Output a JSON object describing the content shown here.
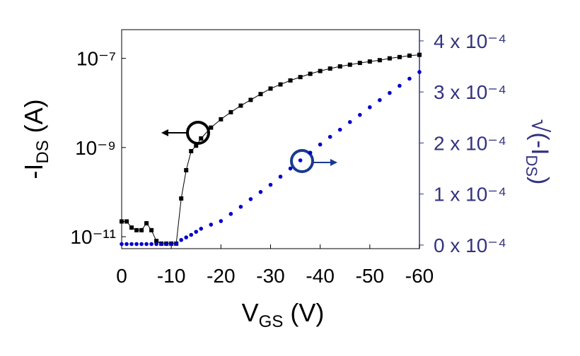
{
  "chart_data": {
    "type": "scatter",
    "x_label": {
      "main": "V",
      "sub": "GS",
      "unit": " (V)"
    },
    "y_label": {
      "main": "-I",
      "sub": "DS",
      "unit": " (A)"
    },
    "y2_label": {
      "main": "√",
      "paren": "(-I",
      "sub": "DS",
      "close": ")"
    },
    "x": [
      0,
      -1,
      -2,
      -3,
      -4,
      -5,
      -6,
      -7,
      -8,
      -9,
      -10,
      -11,
      -12,
      -13,
      -14,
      -15,
      -16,
      -18,
      -20,
      -22,
      -24,
      -26,
      -28,
      -30,
      -32,
      -34,
      -36,
      -38,
      -40,
      -42,
      -44,
      -46,
      -48,
      -50,
      -52,
      -54,
      -56,
      -58,
      -60
    ],
    "xlim": [
      0,
      -60
    ],
    "xticks": [
      0,
      -10,
      -20,
      -30,
      -40,
      -50,
      -60
    ],
    "ylim": [
      5.4e-12,
      4.4e-07
    ],
    "y_scale": "log",
    "yticks": [
      {
        "value": 1e-11,
        "label": "10⁻¹¹"
      },
      {
        "value": 1e-09,
        "label": "10⁻⁹"
      },
      {
        "value": 1e-07,
        "label": "10⁻⁷"
      }
    ],
    "y2lim": [
      -7e-06,
      0.000422
    ],
    "y2ticks": [
      {
        "value": 0,
        "label": "0 x 10⁻⁴"
      },
      {
        "value": 0.0001,
        "label": "1 x 10⁻⁴"
      },
      {
        "value": 0.0002,
        "label": "2 x 10⁻⁴"
      },
      {
        "value": 0.0003,
        "label": "3 x 10⁻⁴"
      },
      {
        "value": 0.0004,
        "label": "4 x 10⁻⁴"
      }
    ],
    "series": [
      {
        "color": "#000000",
        "marker": "square",
        "values": [
          2.2e-11,
          2.2e-11,
          1.6e-11,
          1.4e-11,
          1.4e-11,
          2e-11,
          1.4e-11,
          8e-12,
          7e-12,
          7e-12,
          7e-12,
          7e-12,
          7.2e-11,
          3.1e-10,
          8.3e-10,
          1.1e-09,
          1.6e-09,
          2.8e-09,
          4.3e-09,
          6.2e-09,
          8.7e-09,
          1.17e-08,
          1.58e-08,
          2.1e-08,
          2.6e-08,
          3.2e-08,
          3.8e-08,
          4.5e-08,
          5.2e-08,
          5.9e-08,
          6.6e-08,
          7.2e-08,
          7.9e-08,
          8.5e-08,
          9.1e-08,
          1e-07,
          1.07e-07,
          1.15e-07,
          1.2e-07
        ]
      },
      {
        "color": "#0000cc",
        "marker": "circle",
        "axis": "y2",
        "values": [
          2e-06,
          2e-06,
          2e-06,
          2e-06,
          2e-06,
          2e-06,
          2e-06,
          2e-06,
          2e-06,
          2e-06,
          2e-06,
          3e-06,
          1e-05,
          1.5e-05,
          2e-05,
          2.6e-05,
          3.2e-05,
          4e-05,
          4.7e-05,
          6.1e-05,
          7.5e-05,
          9e-05,
          0.000104,
          0.000118,
          0.000134,
          0.00015,
          0.000166,
          0.000181,
          0.000197,
          0.000212,
          0.000226,
          0.000241,
          0.000255,
          0.00027,
          0.000284,
          0.000298,
          0.000312,
          0.000326,
          0.000339
        ]
      }
    ]
  }
}
